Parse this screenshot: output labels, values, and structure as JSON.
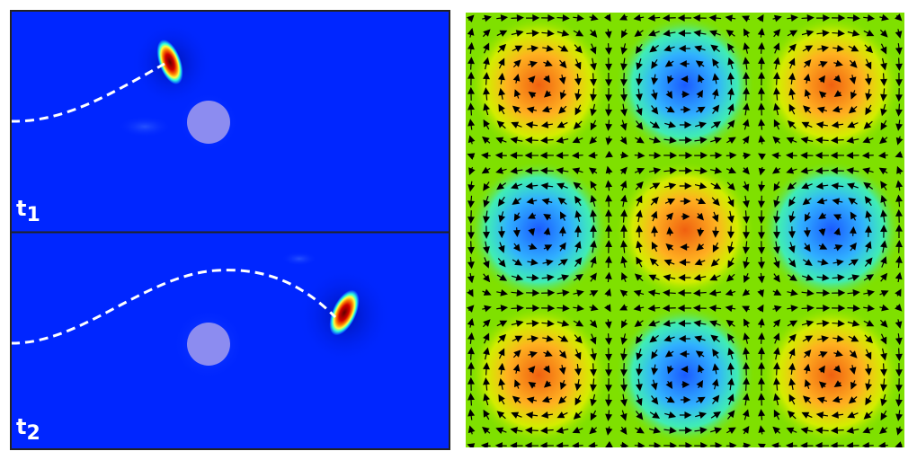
{
  "panels": {
    "top": {
      "label": "t",
      "subscript": "1"
    },
    "bottom": {
      "label": "t",
      "subscript": "2"
    }
  },
  "colors": {
    "background_field": "#0026ff",
    "obstacle": "#8c8cf0",
    "path": "#ffffff",
    "vortex_warm": "#f07a10",
    "vortex_cool": "#1a6aff",
    "field_mid": "#7fe000"
  },
  "vortex_field": {
    "grid": [
      3,
      3
    ],
    "center_signs": [
      [
        1,
        -1,
        1
      ],
      [
        -1,
        1,
        -1
      ],
      [
        1,
        -1,
        1
      ]
    ]
  }
}
